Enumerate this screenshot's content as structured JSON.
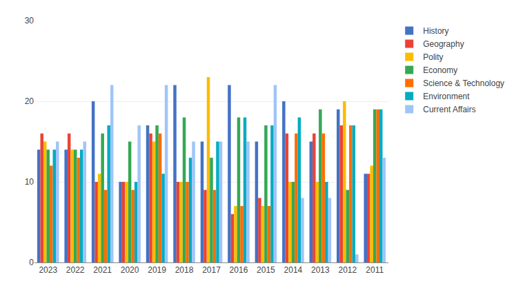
{
  "chart_data": {
    "type": "bar",
    "categories": [
      "2023",
      "2022",
      "2021",
      "2020",
      "2019",
      "2018",
      "2017",
      "2016",
      "2015",
      "2014",
      "2013",
      "2012",
      "2011"
    ],
    "series": [
      {
        "name": "History",
        "color": "#4472C4",
        "values": [
          14,
          14,
          20,
          10,
          17,
          22,
          15,
          22,
          15,
          20,
          15,
          19,
          11
        ]
      },
      {
        "name": "Geography",
        "color": "#EA4335",
        "values": [
          16,
          16,
          10,
          10,
          16,
          10,
          9,
          6,
          8,
          16,
          16,
          17,
          11
        ]
      },
      {
        "name": "Polity",
        "color": "#FBBC04",
        "values": [
          15,
          14,
          11,
          10,
          15,
          10,
          23,
          7,
          7,
          10,
          10,
          20,
          12
        ]
      },
      {
        "name": "Economy",
        "color": "#34A853",
        "values": [
          14,
          14,
          16,
          15,
          17,
          18,
          13,
          18,
          17,
          10,
          19,
          9,
          19
        ]
      },
      {
        "name": "Science & Technology",
        "color": "#FF6D00",
        "values": [
          12,
          13,
          9,
          9,
          16,
          10,
          9,
          7,
          7,
          16,
          16,
          17,
          19
        ]
      },
      {
        "name": "Environment",
        "color": "#00ACC1",
        "values": [
          14,
          14,
          17,
          10,
          11,
          13,
          15,
          18,
          17,
          18,
          10,
          17,
          19
        ]
      },
      {
        "name": "Current Affairs",
        "color": "#9FC5F8",
        "values": [
          15,
          15,
          22,
          17,
          22,
          15,
          15,
          15,
          22,
          8,
          8,
          1,
          13
        ]
      }
    ],
    "ylim": [
      0,
      30
    ],
    "yticks": [
      0,
      10,
      20,
      30
    ],
    "grid": true,
    "legend": "right"
  }
}
